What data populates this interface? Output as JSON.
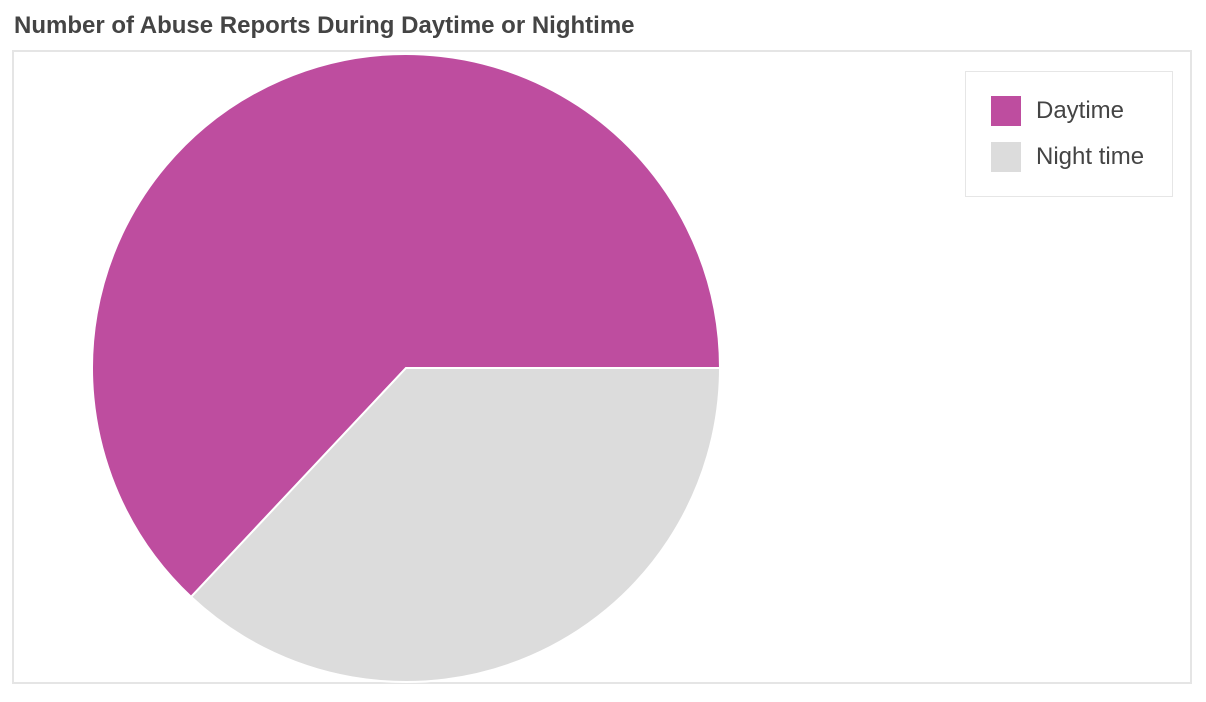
{
  "chart_data": {
    "type": "pie",
    "title": "Number of Abuse Reports During Daytime or Nightime",
    "categories": [
      "Daytime",
      "Night time"
    ],
    "values": [
      63,
      37
    ],
    "colors": [
      "#be4d9f",
      "#dcdcdc"
    ],
    "legend_position": "top-right"
  }
}
